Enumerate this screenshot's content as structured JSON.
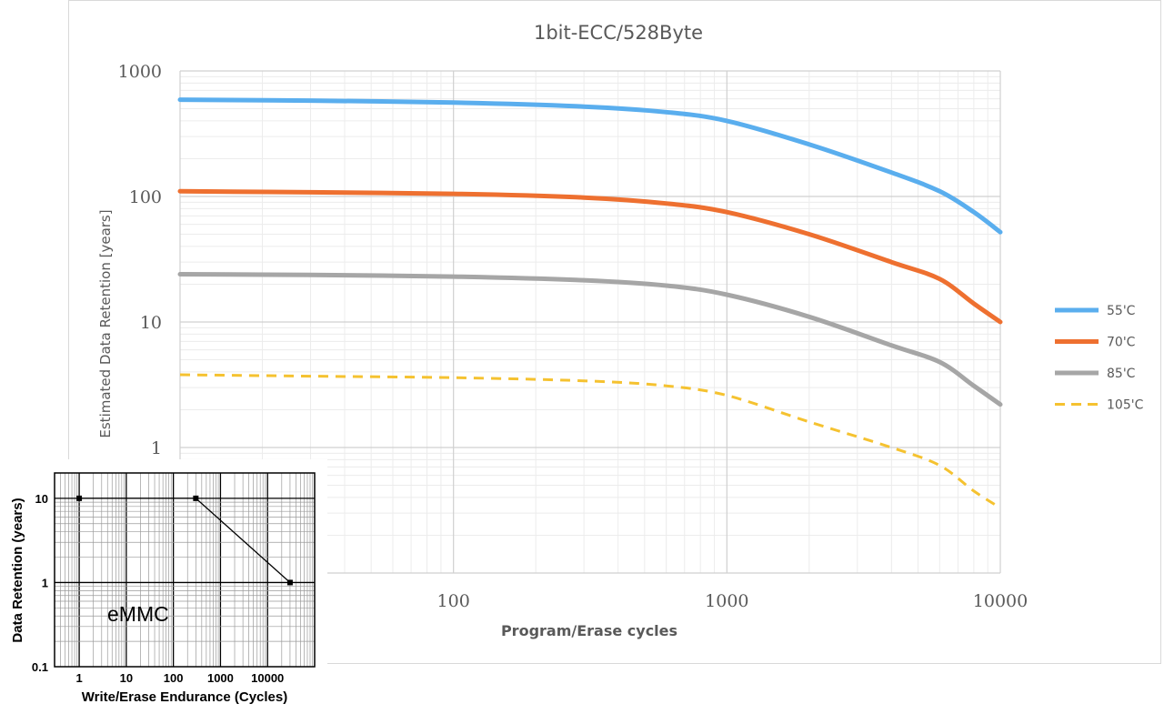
{
  "chart_data": [
    {
      "type": "line",
      "title": "1bit-ECC/528Byte",
      "xlabel": "Program/Erase cycles",
      "ylabel": "Estimated Data Retention [years]",
      "x_scale": "log",
      "y_scale": "log",
      "xlim": [
        10,
        10000
      ],
      "ylim": [
        0.1,
        1000
      ],
      "x_ticks": [
        {
          "value": 100,
          "label": "100"
        },
        {
          "value": 1000,
          "label": "1000"
        },
        {
          "value": 10000,
          "label": "10000"
        }
      ],
      "y_ticks": [
        {
          "value": 1000,
          "label": "1000"
        },
        {
          "value": 100,
          "label": "100"
        },
        {
          "value": 10,
          "label": "10"
        },
        {
          "value": 1,
          "label": "1"
        }
      ],
      "grid": true,
      "legend_position": "right",
      "series": [
        {
          "name": "55'C",
          "color": "#5aaeee",
          "dash": "solid",
          "x": [
            10,
            30,
            100,
            300,
            600,
            1000,
            2000,
            4000,
            6000,
            8000,
            10000
          ],
          "y": [
            590,
            580,
            560,
            520,
            470,
            400,
            260,
            155,
            110,
            75,
            52
          ]
        },
        {
          "name": "70'C",
          "color": "#ee7030",
          "dash": "solid",
          "x": [
            10,
            30,
            100,
            300,
            600,
            1000,
            2000,
            4000,
            6000,
            8000,
            10000
          ],
          "y": [
            110,
            108,
            105,
            98,
            88,
            75,
            50,
            30,
            22,
            14,
            10
          ]
        },
        {
          "name": "85'C",
          "color": "#a6a6a6",
          "dash": "solid",
          "x": [
            10,
            30,
            100,
            300,
            600,
            1000,
            2000,
            4000,
            6000,
            8000,
            10000
          ],
          "y": [
            24,
            23.7,
            23,
            21.5,
            19.5,
            16.5,
            11,
            6.5,
            4.8,
            3.1,
            2.2
          ]
        },
        {
          "name": "105'C",
          "color": "#f5c230",
          "dash": "dashed",
          "x": [
            10,
            30,
            100,
            300,
            600,
            1000,
            2000,
            4000,
            6000,
            8000,
            10000
          ],
          "y": [
            3.8,
            3.7,
            3.6,
            3.4,
            3.1,
            2.6,
            1.6,
            1.0,
            0.72,
            0.45,
            0.33
          ]
        }
      ]
    },
    {
      "type": "line",
      "annotation": "eMMC",
      "xlabel": "Write/Erase Endurance (Cycles)",
      "ylabel": "Data Retention (years)",
      "x_scale": "log",
      "y_scale": "log",
      "xlim": [
        0.3,
        100000
      ],
      "ylim": [
        0.1,
        20
      ],
      "x_ticks": [
        {
          "value": 1,
          "label": "1"
        },
        {
          "value": 10,
          "label": "10"
        },
        {
          "value": 100,
          "label": "100"
        },
        {
          "value": 1000,
          "label": "1000"
        },
        {
          "value": 10000,
          "label": "10000"
        }
      ],
      "y_ticks": [
        {
          "value": 10,
          "label": "10"
        },
        {
          "value": 1,
          "label": "1"
        },
        {
          "value": 0.1,
          "label": "0.1"
        }
      ],
      "grid": true,
      "series": [
        {
          "color": "#000000",
          "x": [
            1,
            300,
            30000
          ],
          "y": [
            10,
            10,
            1
          ]
        }
      ]
    }
  ]
}
